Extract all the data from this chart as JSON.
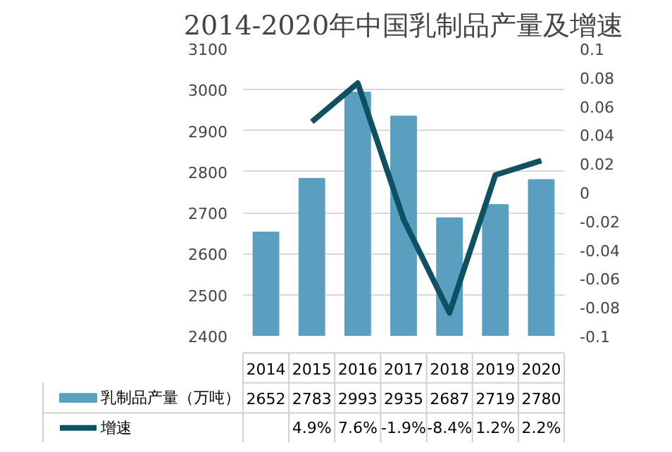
{
  "chart_data": {
    "type": "bar",
    "title": "2014-2020年中国乳制品产量及增速",
    "categories": [
      "2014",
      "2015",
      "2016",
      "2017",
      "2018",
      "2019",
      "2020"
    ],
    "series": [
      {
        "name": "乳制品产量（万吨）",
        "color": "#5a9ec0",
        "values": [
          2652,
          2783,
          2993,
          2935,
          2687,
          2719,
          2780
        ],
        "value_labels": [
          "2652",
          "2783",
          "2993",
          "2935",
          "2687",
          "2719",
          "2780"
        ]
      },
      {
        "name": "增速",
        "type": "line",
        "axis": "y2",
        "color": "#0f5163",
        "values": [
          null,
          0.049,
          0.076,
          -0.019,
          -0.084,
          0.012,
          0.022
        ],
        "value_labels": [
          null,
          "4.9%",
          "7.6%",
          "-1.9%",
          "-8.4%",
          "1.2%",
          "2.2%"
        ]
      }
    ],
    "ylim": [
      2400,
      3100
    ],
    "yticks": [
      2400,
      2500,
      2600,
      2700,
      2800,
      2900,
      3000,
      3100
    ],
    "y2lim": [
      -0.1,
      0.1
    ],
    "y2ticks": [
      -0.1,
      -0.08,
      -0.06,
      -0.04,
      -0.02,
      0,
      0.02,
      0.04,
      0.06,
      0.08,
      0.1
    ],
    "grid": "y",
    "legend": "bottom",
    "marker": "none",
    "line_style": "solid"
  }
}
